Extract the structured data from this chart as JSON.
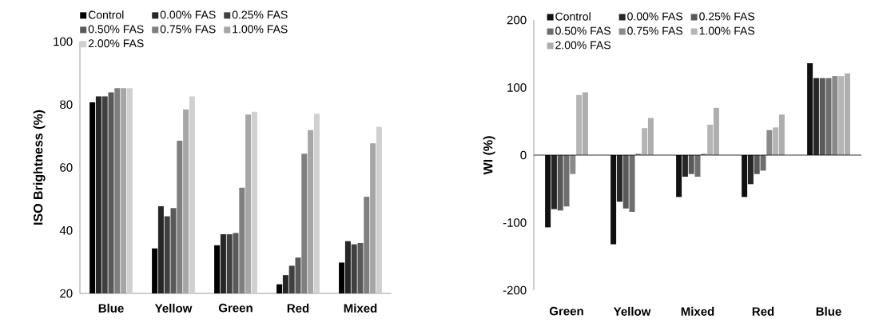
{
  "chart_data": [
    {
      "type": "bar",
      "ylabel": "ISO Brightness (%)",
      "categories": [
        "Blue",
        "Yellow",
        "Green",
        "Red",
        "Mixed"
      ],
      "ylim": [
        20,
        100
      ],
      "yticks": [
        20,
        40,
        60,
        80,
        100
      ],
      "legend": "top",
      "grid": false,
      "series": [
        {
          "name": "Control",
          "color": "#000000",
          "values": [
            80.7,
            34.3,
            35.3,
            22.9,
            29.8
          ]
        },
        {
          "name": "0.00% FAS",
          "color": "#262626",
          "values": [
            82.6,
            47.7,
            38.8,
            25.8,
            36.6
          ]
        },
        {
          "name": "0.25% FAS",
          "color": "#404040",
          "values": [
            82.6,
            44.5,
            38.8,
            28.8,
            35.6
          ]
        },
        {
          "name": "0.50% FAS",
          "color": "#595959",
          "values": [
            83.9,
            47.1,
            39.2,
            31.4,
            36.0
          ]
        },
        {
          "name": "0.75% FAS",
          "color": "#7f7f7f",
          "values": [
            85.2,
            68.5,
            53.6,
            64.4,
            50.7
          ]
        },
        {
          "name": "1.00% FAS",
          "color": "#a6a6a6",
          "values": [
            85.2,
            78.4,
            76.8,
            71.9,
            67.7
          ]
        },
        {
          "name": "2.00% FAS",
          "color": "#d0d0d0",
          "values": [
            85.2,
            82.6,
            77.7,
            77.1,
            72.9
          ]
        }
      ]
    },
    {
      "type": "bar",
      "ylabel": "WI (%)",
      "categories": [
        "Green",
        "Yellow",
        "Mixed",
        "Red",
        "Blue"
      ],
      "ylim": [
        -200,
        200
      ],
      "yticks": [
        -200,
        -100,
        0,
        100,
        200
      ],
      "legend": "top left",
      "grid": false,
      "ref_lines": [
        {
          "axis": "y",
          "value": 0,
          "color": "#000000"
        }
      ],
      "series": [
        {
          "name": "Control",
          "color": "#111111",
          "values": [
            -107,
            -132,
            -62,
            -62,
            136
          ]
        },
        {
          "name": "0.00% FAS",
          "color": "#262626",
          "values": [
            -80,
            -69,
            -32,
            -43,
            114
          ]
        },
        {
          "name": "0.25% FAS",
          "color": "#595959",
          "values": [
            -82,
            -79,
            -28,
            -28,
            114
          ]
        },
        {
          "name": "0.50% FAS",
          "color": "#6e6e6e",
          "values": [
            -76,
            -84,
            -32,
            -23,
            114
          ]
        },
        {
          "name": "0.75% FAS",
          "color": "#8a8a8a",
          "values": [
            -28,
            2,
            2,
            37,
            117
          ]
        },
        {
          "name": "1.00% FAS",
          "color": "#b5b5b5",
          "values": [
            89,
            40,
            45,
            41,
            117
          ]
        },
        {
          "name": "2.00% FAS",
          "color": "#aeaeae",
          "values": [
            93,
            55,
            70,
            60,
            121
          ]
        }
      ]
    }
  ]
}
